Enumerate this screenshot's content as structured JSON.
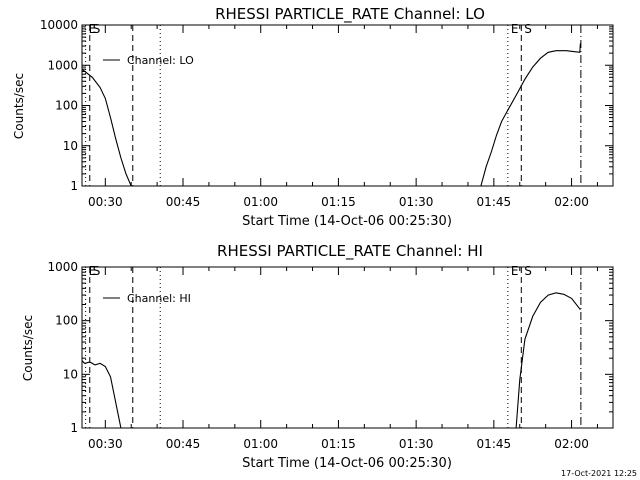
{
  "footer": {
    "timestamp": "17-Oct-2021 12:25"
  },
  "chart_data": [
    {
      "type": "line",
      "title": "RHESSI PARTICLE_RATE Channel: LO",
      "xlabel": "Start Time (14-Oct-06 00:25:30)",
      "ylabel": "Counts/sec",
      "yscale": "log",
      "ylim": [
        1,
        10000
      ],
      "y_ticks": [
        {
          "value": 10000,
          "label": "10000"
        },
        {
          "value": 1000,
          "label": "1000"
        },
        {
          "value": 100,
          "label": "100"
        },
        {
          "value": 10,
          "label": "10"
        },
        {
          "value": 1,
          "label": "1"
        }
      ],
      "xlim_minutes": [
        25.5,
        128
      ],
      "x_ticks": [
        {
          "minutes": 30,
          "label": "00:30"
        },
        {
          "minutes": 45,
          "label": "00:45"
        },
        {
          "minutes": 60,
          "label": "01:00"
        },
        {
          "minutes": 75,
          "label": "01:15"
        },
        {
          "minutes": 90,
          "label": "01:30"
        },
        {
          "minutes": 105,
          "label": "01:45"
        },
        {
          "minutes": 120,
          "label": "02:00"
        }
      ],
      "legend": {
        "label": "Channel: LO",
        "position": "top-left"
      },
      "series": [
        {
          "name": "Channel: LO",
          "segments": [
            [
              [
                25.5,
                800
              ],
              [
                27.5,
                500
              ],
              [
                29,
                280
              ],
              [
                30,
                150
              ],
              [
                31,
                50
              ],
              [
                32,
                15
              ],
              [
                33,
                5
              ],
              [
                34,
                2
              ],
              [
                35,
                1
              ]
            ],
            [
              [
                102.5,
                1
              ],
              [
                103.5,
                3
              ],
              [
                104.5,
                7
              ],
              [
                105.5,
                18
              ],
              [
                106.5,
                40
              ],
              [
                108,
                90
              ],
              [
                109.5,
                200
              ],
              [
                111,
                450
              ],
              [
                112.5,
                900
              ],
              [
                114,
                1500
              ],
              [
                115.5,
                2100
              ],
              [
                117,
                2300
              ],
              [
                119,
                2300
              ],
              [
                121,
                2150
              ],
              [
                121.6,
                2100
              ],
              [
                121.7,
                3500
              ]
            ]
          ]
        }
      ],
      "markers": [
        {
          "minutes": 26.2,
          "style": "dotted",
          "label": "E"
        },
        {
          "minutes": 27.0,
          "style": "dashed",
          "label": "S"
        },
        {
          "minutes": 35.3,
          "style": "dashed",
          "label": ""
        },
        {
          "minutes": 40.6,
          "style": "dotted",
          "label": ""
        },
        {
          "minutes": 107.7,
          "style": "dotted",
          "label": "E"
        },
        {
          "minutes": 110.3,
          "style": "dashed",
          "label": "S"
        },
        {
          "minutes": 121.8,
          "style": "dash-dot",
          "label": ""
        }
      ]
    },
    {
      "type": "line",
      "title": "RHESSI PARTICLE_RATE Channel: HI",
      "xlabel": "Start Time (14-Oct-06 00:25:30)",
      "ylabel": "Counts/sec",
      "yscale": "log",
      "ylim": [
        1,
        1000
      ],
      "y_ticks": [
        {
          "value": 1000,
          "label": "1000"
        },
        {
          "value": 100,
          "label": "100"
        },
        {
          "value": 10,
          "label": "10"
        },
        {
          "value": 1,
          "label": "1"
        }
      ],
      "xlim_minutes": [
        25.5,
        128
      ],
      "x_ticks": [
        {
          "minutes": 30,
          "label": "00:30"
        },
        {
          "minutes": 45,
          "label": "00:45"
        },
        {
          "minutes": 60,
          "label": "01:00"
        },
        {
          "minutes": 75,
          "label": "01:15"
        },
        {
          "minutes": 90,
          "label": "01:30"
        },
        {
          "minutes": 105,
          "label": "01:45"
        },
        {
          "minutes": 120,
          "label": "02:00"
        }
      ],
      "legend": {
        "label": "Channel: HI",
        "position": "top-left"
      },
      "series": [
        {
          "name": "Channel: HI",
          "segments": [
            [
              [
                25.5,
                18
              ],
              [
                26,
                16
              ],
              [
                27,
                17
              ],
              [
                28,
                15
              ],
              [
                29,
                16
              ],
              [
                30,
                14
              ],
              [
                31,
                9
              ],
              [
                32,
                3
              ],
              [
                33,
                1
              ]
            ],
            [
              [
                109.3,
                1
              ],
              [
                110,
                8
              ],
              [
                111,
                45
              ],
              [
                112.5,
                120
              ],
              [
                114,
                220
              ],
              [
                115.5,
                300
              ],
              [
                117,
                330
              ],
              [
                118.5,
                310
              ],
              [
                120,
                260
              ],
              [
                121.7,
                160
              ]
            ]
          ]
        }
      ],
      "markers": [
        {
          "minutes": 26.2,
          "style": "dotted",
          "label": "E"
        },
        {
          "minutes": 27.0,
          "style": "dashed",
          "label": "S"
        },
        {
          "minutes": 35.3,
          "style": "dashed",
          "label": ""
        },
        {
          "minutes": 40.6,
          "style": "dotted",
          "label": ""
        },
        {
          "minutes": 107.7,
          "style": "dotted",
          "label": "E"
        },
        {
          "minutes": 110.3,
          "style": "dashed",
          "label": "S"
        },
        {
          "minutes": 121.8,
          "style": "dash-dot",
          "label": ""
        }
      ]
    }
  ]
}
